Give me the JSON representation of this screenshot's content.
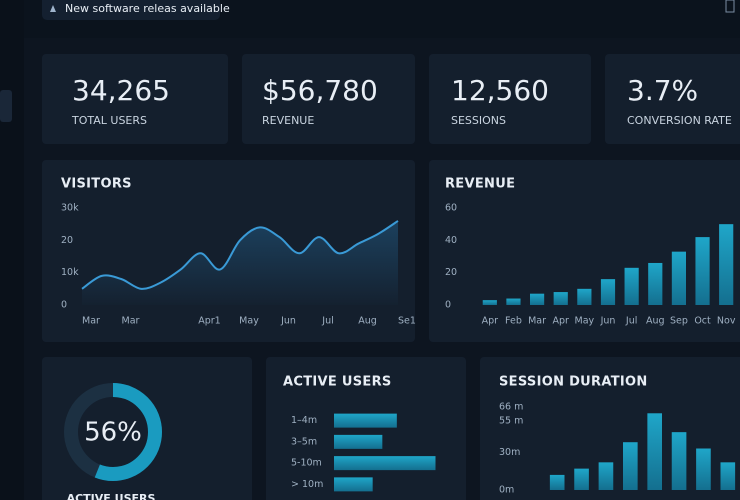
{
  "notification": "New software releas available",
  "kpis": [
    {
      "value": "34,265",
      "label": "TOTAL USERS"
    },
    {
      "value": "$56,780",
      "label": "REVENUE"
    },
    {
      "value": "12,560",
      "label": "SESSIONS"
    },
    {
      "value": "3.7%",
      "label": "CONVERSION RATE"
    }
  ],
  "chart_data": [
    {
      "type": "line",
      "title": "VISITORS",
      "color": "#3a9ad6",
      "categories": [
        "Mar",
        null,
        "Mar",
        null,
        null,
        null,
        "Apr1",
        null,
        "May",
        null,
        "Jun",
        null,
        "Jul",
        null,
        "Aug",
        null,
        "Se1"
      ],
      "values": [
        5000,
        9000,
        8000,
        5000,
        7000,
        11000,
        16000,
        11000,
        20000,
        24000,
        21000,
        16000,
        21000,
        16000,
        19000,
        22000,
        26000
      ],
      "ylim": [
        0,
        30000
      ],
      "yticks": [
        {
          "value": 30000,
          "label": "30k"
        },
        {
          "value": 20000,
          "label": "20"
        },
        {
          "value": 10000,
          "label": "10k"
        },
        0
      ]
    },
    {
      "type": "bar",
      "title": "REVENUE",
      "color": "#1a8fb3",
      "categories": [
        "Apr",
        "Feb",
        "Mar",
        "Apr",
        "May",
        "Jun",
        "Jul",
        "Aug",
        "Sep",
        "Oct",
        "Nov"
      ],
      "values": [
        3,
        4,
        7,
        8,
        10,
        16,
        23,
        26,
        33,
        42,
        50
      ],
      "ylim": [
        0,
        60
      ],
      "yticks": [
        60,
        40,
        20,
        0
      ]
    },
    {
      "type": "hbar",
      "title": "ACTIVE USERS",
      "color": "#1a8fb3",
      "categories": [
        "1–4m",
        "3–5m",
        "5-10m",
        "> 10m"
      ],
      "values": [
        65,
        50,
        105,
        40
      ],
      "xlim": [
        0,
        120
      ]
    },
    {
      "type": "bar",
      "title": "SESSION DURATION",
      "color": "#1a8fb3",
      "values": [
        12,
        17,
        22,
        38,
        61,
        46,
        33,
        22
      ],
      "ylim": [
        0,
        66
      ],
      "yticks": [
        {
          "value": 66,
          "label": "66 m"
        },
        {
          "value": 55,
          "label": "55 m"
        },
        {
          "value": 30,
          "label": "30m"
        },
        {
          "value": 0,
          "label": "0m"
        }
      ]
    },
    {
      "type": "donut",
      "label": "ACTIVE USERS",
      "color": "#1a9bc0",
      "values": [
        56
      ],
      "value_labels": [
        "56%"
      ]
    }
  ]
}
